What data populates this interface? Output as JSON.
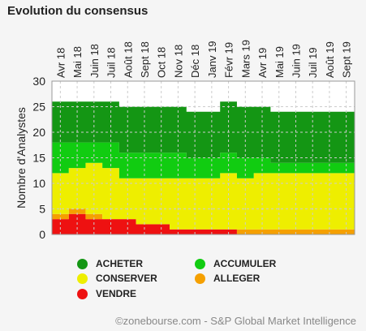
{
  "title": "Evolution du consensus",
  "source": "©zonebourse.com - S&P Global Market Intelligence",
  "chart_data": {
    "type": "area",
    "stacked": true,
    "ylabel": "Nombre d'Analystes",
    "ylim": [
      0,
      30
    ],
    "yticks": [
      0,
      5,
      10,
      15,
      20,
      25,
      30
    ],
    "grid": true,
    "legend_position": "bottom",
    "x_tick_labels": [
      "Avr 18",
      "Mai 18",
      "Juin 18",
      "Juil 18",
      "Août 18",
      "Sept 18",
      "Oct 18",
      "Nov 18",
      "Déc 18",
      "Janv 19",
      "Févr 19",
      "Mars 19",
      "Avr 19",
      "Mai 19",
      "Juin 19",
      "Juil 19",
      "Août 19",
      "Sept 19"
    ],
    "series": [
      {
        "name": "VENDRE",
        "color": "#ee1111",
        "values": [
          3,
          4,
          3,
          3,
          3,
          2,
          2,
          1,
          1,
          1,
          1,
          0,
          0,
          0,
          0,
          0,
          0,
          0
        ]
      },
      {
        "name": "ALLEGER",
        "color": "#f5a000",
        "values": [
          1,
          1,
          1,
          0,
          0,
          0,
          0,
          0,
          0,
          0,
          0,
          1,
          1,
          1,
          1,
          1,
          1,
          1
        ]
      },
      {
        "name": "CONSERVER",
        "color": "#eeee00",
        "values": [
          8,
          8,
          10,
          10,
          8,
          9,
          9,
          10,
          10,
          10,
          11,
          10,
          11,
          11,
          11,
          11,
          11,
          11
        ]
      },
      {
        "name": "ACCUMULER",
        "color": "#11cc11",
        "values": [
          6,
          5,
          4,
          5,
          5,
          5,
          5,
          5,
          4,
          4,
          4,
          4,
          3,
          2,
          2,
          2,
          2,
          2
        ]
      },
      {
        "name": "ACHETER",
        "color": "#149614",
        "values": [
          8,
          8,
          8,
          8,
          9,
          9,
          9,
          9,
          9,
          9,
          10,
          10,
          10,
          10,
          10,
          10,
          10,
          10
        ]
      }
    ]
  },
  "legend": [
    {
      "label": "ACHETER",
      "color": "#149614"
    },
    {
      "label": "ACCUMULER",
      "color": "#11cc11"
    },
    {
      "label": "CONSERVER",
      "color": "#eeee00"
    },
    {
      "label": "ALLEGER",
      "color": "#f5a000"
    },
    {
      "label": "VENDRE",
      "color": "#ee1111"
    }
  ]
}
